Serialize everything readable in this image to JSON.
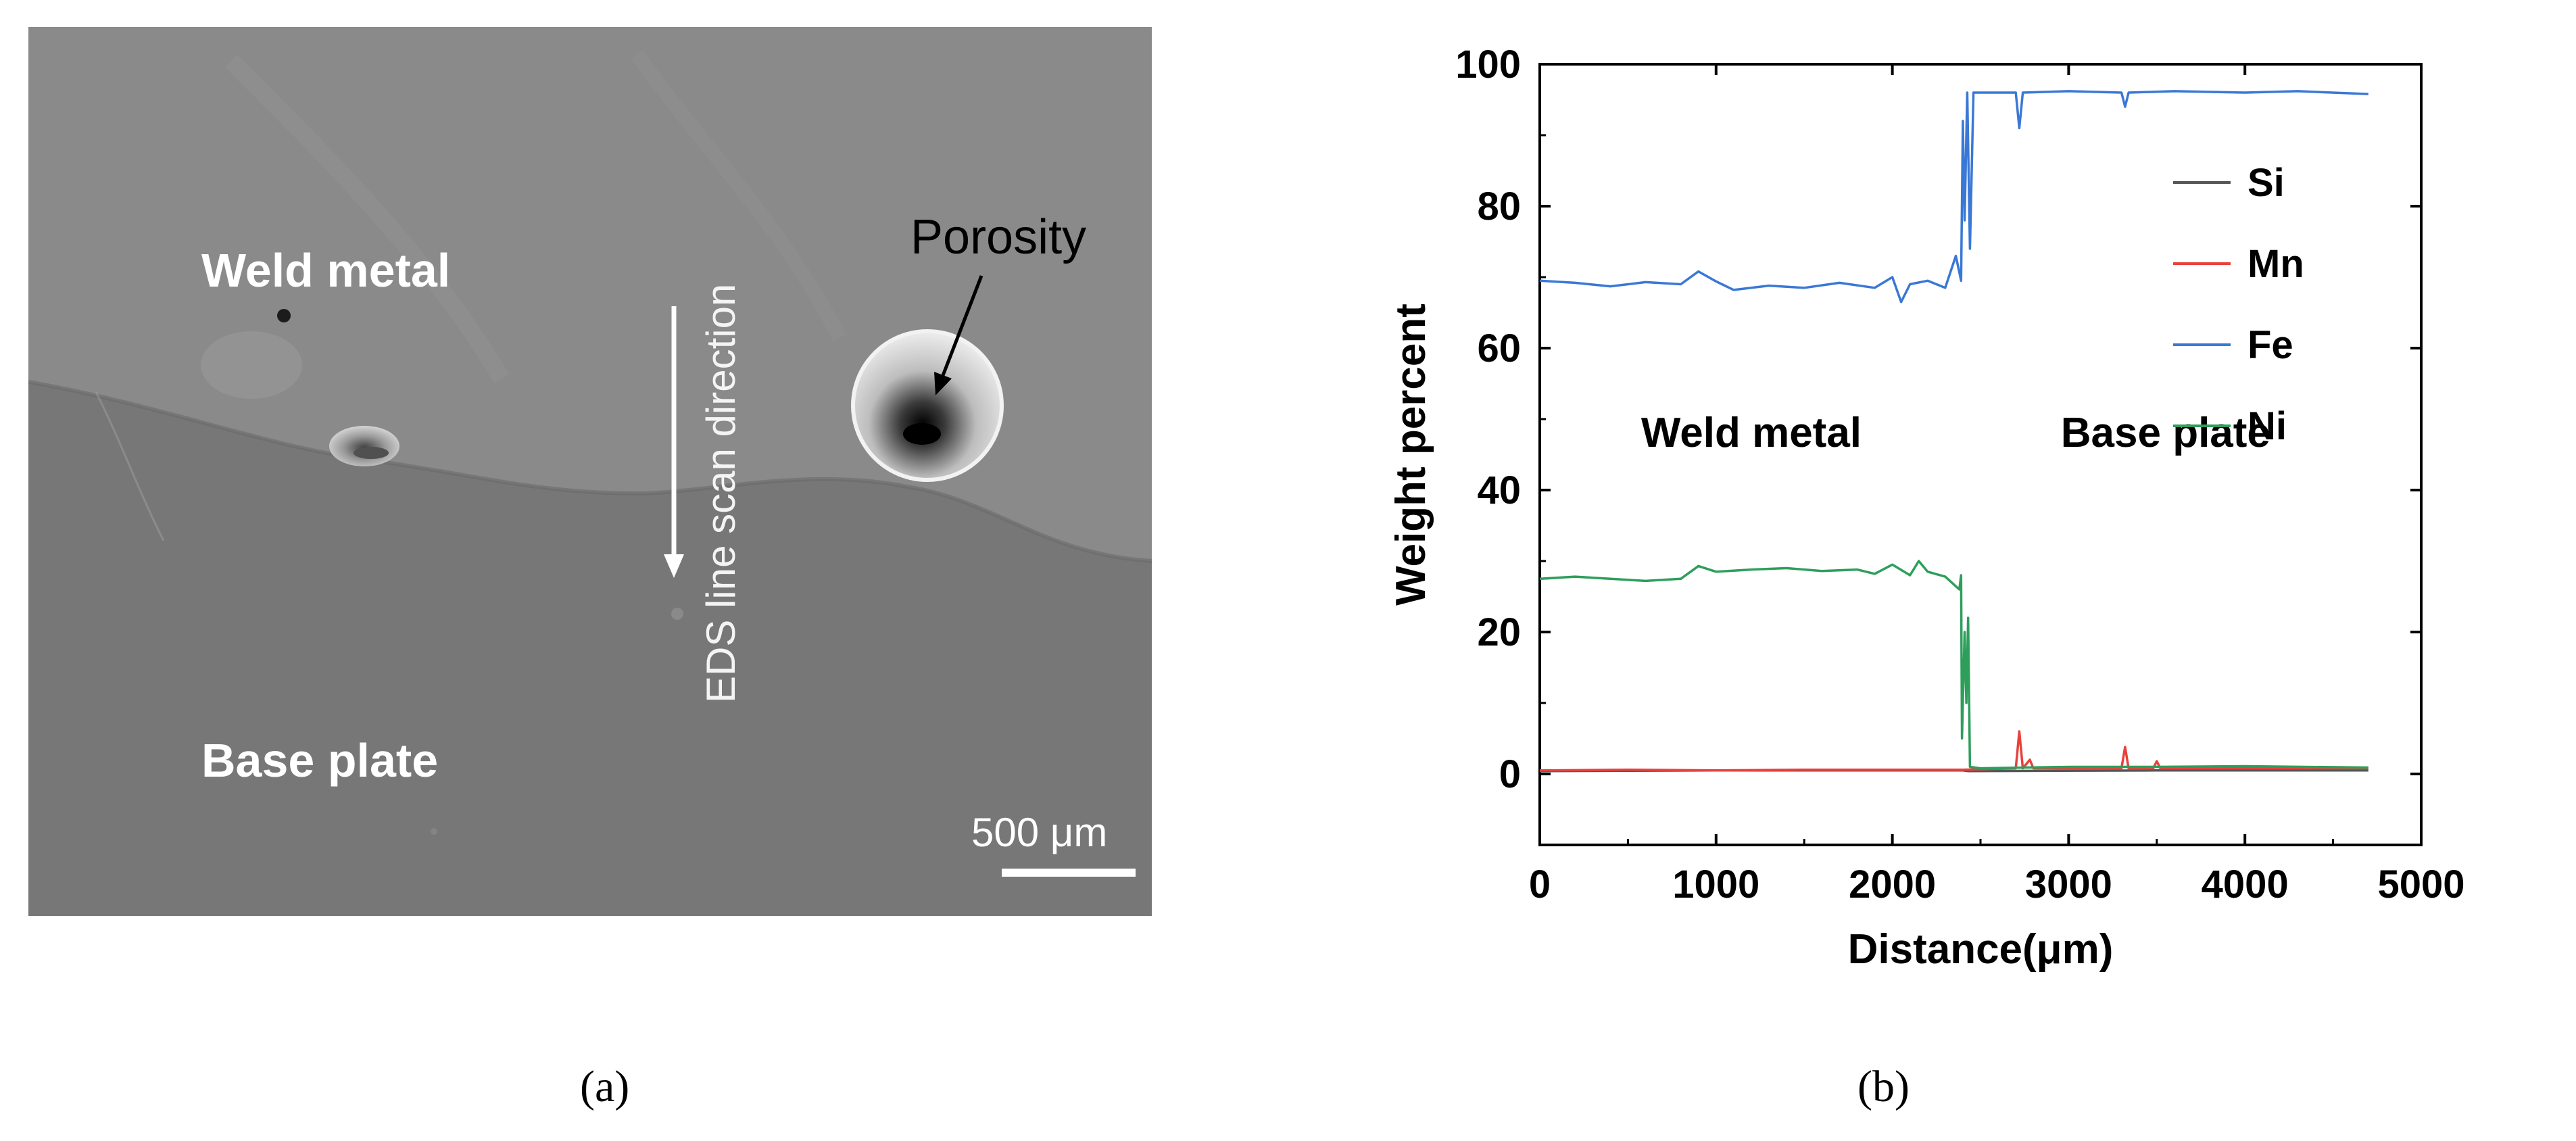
{
  "panel_a": {
    "caption": "(a)",
    "weld_metal_label": "Weld metal",
    "base_plate_label": "Base plate",
    "porosity_label": "Porosity",
    "eds_direction_label": "EDS line scan direction",
    "scale_bar_label": "500 μm"
  },
  "panel_b": {
    "caption": "(b)"
  },
  "colors": {
    "Si": "#555555",
    "Mn": "#e8413c",
    "Fe": "#3a78d6",
    "Ni": "#2e9e5b",
    "sem_weld": "#8a8a8a",
    "sem_base": "#777777"
  },
  "chart_data": {
    "type": "line",
    "title": "",
    "xlabel": "Distance(μm)",
    "ylabel": "Weight percent",
    "xlim": [
      0,
      5000
    ],
    "ylim": [
      -10,
      100
    ],
    "xticks": [
      0,
      1000,
      2000,
      3000,
      4000,
      5000
    ],
    "yticks": [
      0,
      20,
      40,
      60,
      80,
      100
    ],
    "legend_position": "right",
    "annotations": [
      {
        "text": "Weld metal",
        "x": 1200,
        "y": 48
      },
      {
        "text": "Base plate",
        "x": 3550,
        "y": 48
      }
    ],
    "series": [
      {
        "name": "Si",
        "points": [
          [
            0,
            0.4
          ],
          [
            1000,
            0.5
          ],
          [
            2000,
            0.5
          ],
          [
            2400,
            0.5
          ],
          [
            2430,
            0.4
          ],
          [
            3500,
            0.5
          ],
          [
            4700,
            0.5
          ]
        ]
      },
      {
        "name": "Mn",
        "points": [
          [
            0,
            0.5
          ],
          [
            500,
            0.6
          ],
          [
            1000,
            0.5
          ],
          [
            1500,
            0.6
          ],
          [
            2000,
            0.6
          ],
          [
            2400,
            0.6
          ],
          [
            2700,
            0.8
          ],
          [
            2720,
            6
          ],
          [
            2740,
            0.8
          ],
          [
            2780,
            2
          ],
          [
            2800,
            0.8
          ],
          [
            3300,
            0.8
          ],
          [
            3320,
            3.8
          ],
          [
            3340,
            0.8
          ],
          [
            3480,
            0.8
          ],
          [
            3500,
            1.8
          ],
          [
            3520,
            0.8
          ],
          [
            4700,
            0.8
          ]
        ]
      },
      {
        "name": "Fe",
        "points": [
          [
            0,
            69.5
          ],
          [
            200,
            69.2
          ],
          [
            400,
            68.7
          ],
          [
            600,
            69.3
          ],
          [
            800,
            69
          ],
          [
            900,
            70.8
          ],
          [
            1000,
            69.4
          ],
          [
            1100,
            68.2
          ],
          [
            1300,
            68.8
          ],
          [
            1500,
            68.5
          ],
          [
            1700,
            69.2
          ],
          [
            1900,
            68.5
          ],
          [
            2000,
            70
          ],
          [
            2050,
            66.5
          ],
          [
            2100,
            69
          ],
          [
            2200,
            69.5
          ],
          [
            2300,
            68.5
          ],
          [
            2360,
            73
          ],
          [
            2390,
            69.5
          ],
          [
            2400,
            92
          ],
          [
            2410,
            78
          ],
          [
            2425,
            96
          ],
          [
            2440,
            74
          ],
          [
            2460,
            96
          ],
          [
            2700,
            96
          ],
          [
            2720,
            91
          ],
          [
            2740,
            96
          ],
          [
            3000,
            96.2
          ],
          [
            3300,
            96
          ],
          [
            3320,
            94
          ],
          [
            3340,
            96
          ],
          [
            3600,
            96.2
          ],
          [
            4000,
            96
          ],
          [
            4300,
            96.2
          ],
          [
            4700,
            95.8
          ]
        ]
      },
      {
        "name": "Ni",
        "points": [
          [
            0,
            27.5
          ],
          [
            200,
            27.8
          ],
          [
            400,
            27.5
          ],
          [
            600,
            27.2
          ],
          [
            800,
            27.5
          ],
          [
            900,
            29.3
          ],
          [
            1000,
            28.5
          ],
          [
            1200,
            28.8
          ],
          [
            1400,
            29
          ],
          [
            1600,
            28.6
          ],
          [
            1800,
            28.8
          ],
          [
            1900,
            28.2
          ],
          [
            2000,
            29.5
          ],
          [
            2100,
            28
          ],
          [
            2150,
            30
          ],
          [
            2200,
            28.5
          ],
          [
            2300,
            27.8
          ],
          [
            2380,
            26
          ],
          [
            2390,
            28
          ],
          [
            2395,
            5
          ],
          [
            2410,
            20
          ],
          [
            2420,
            10
          ],
          [
            2430,
            22
          ],
          [
            2440,
            1
          ],
          [
            2500,
            0.8
          ],
          [
            3000,
            1
          ],
          [
            3500,
            1
          ],
          [
            4000,
            1.1
          ],
          [
            4700,
            0.9
          ]
        ]
      }
    ]
  }
}
